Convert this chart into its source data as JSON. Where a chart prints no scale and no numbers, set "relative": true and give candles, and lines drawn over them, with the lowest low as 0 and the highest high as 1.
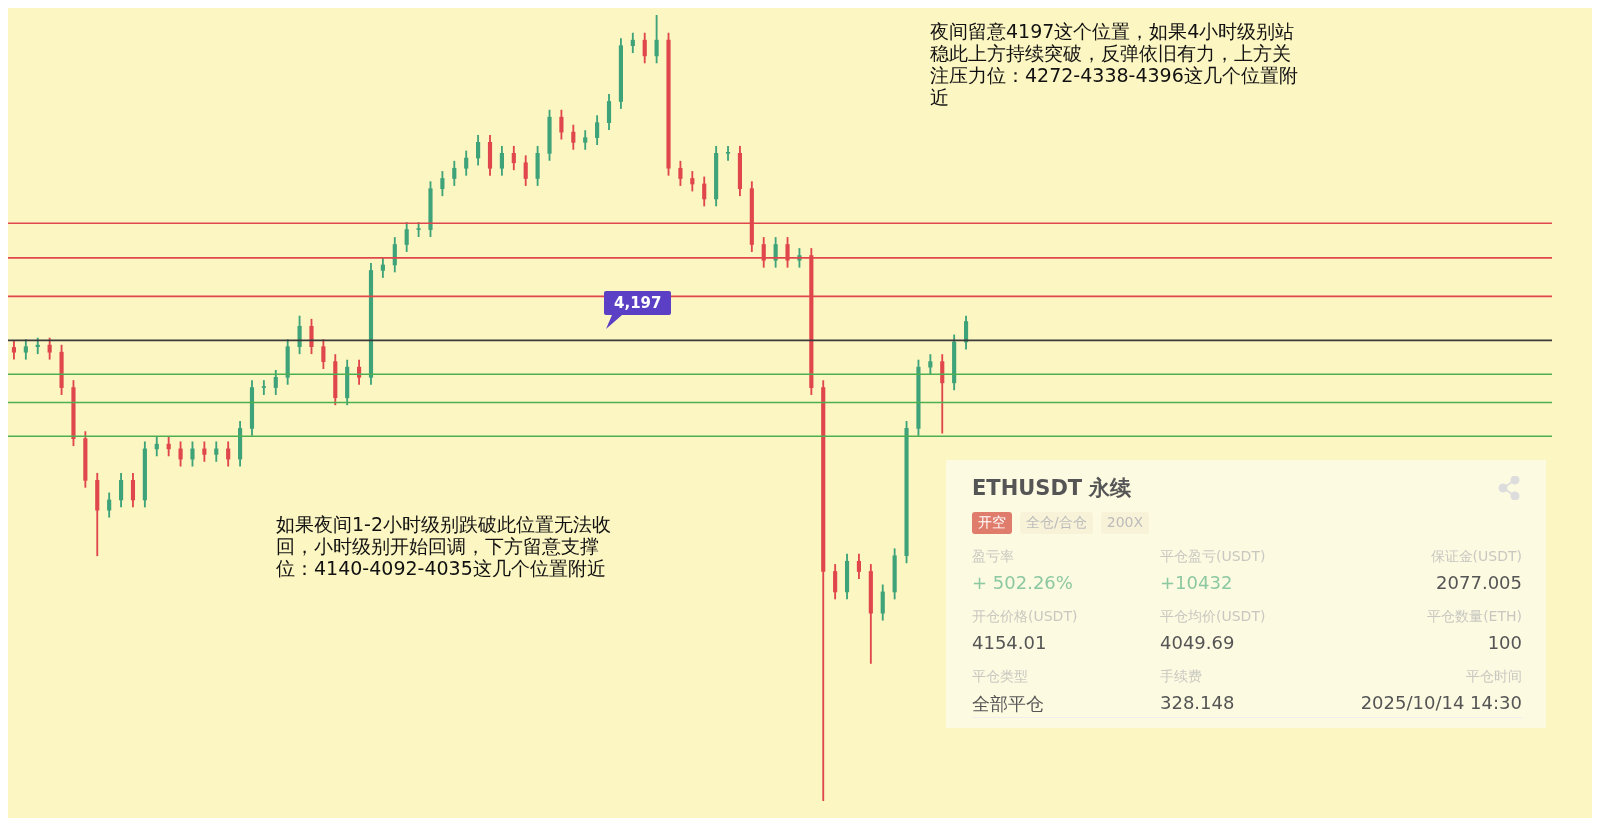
{
  "chart_data": [
    {
      "type": "candlestick",
      "relative": true,
      "categories": [
        null,
        null,
        null,
        null,
        null,
        null,
        null,
        null,
        null,
        null,
        null,
        null,
        null,
        null,
        null,
        null,
        null,
        null,
        null,
        null,
        null,
        null,
        null,
        null,
        null,
        null,
        null,
        null,
        null,
        null,
        null,
        null,
        null,
        null,
        null,
        null,
        null,
        null,
        null,
        null,
        null,
        null,
        null,
        null,
        null,
        null,
        null,
        null,
        null,
        null,
        null,
        null,
        null,
        null,
        null,
        null,
        null,
        null,
        null,
        null,
        null,
        null,
        null,
        null,
        null,
        null,
        null,
        null,
        null,
        null,
        null,
        null,
        null,
        null,
        null,
        null,
        null,
        null,
        null,
        null,
        null
      ],
      "ohlc": [
        [
          0.577,
          0.586,
          0.562,
          0.571
        ],
        [
          0.571,
          0.587,
          0.562,
          0.578
        ],
        [
          0.578,
          0.589,
          0.569,
          0.58
        ],
        [
          0.58,
          0.589,
          0.562,
          0.571
        ],
        [
          0.571,
          0.58,
          0.517,
          0.526
        ],
        [
          0.526,
          0.535,
          0.452,
          0.461
        ],
        [
          0.461,
          0.47,
          0.399,
          0.408
        ],
        [
          0.408,
          0.417,
          0.312,
          0.37
        ],
        [
          0.37,
          0.392,
          0.361,
          0.383
        ],
        [
          0.383,
          0.417,
          0.374,
          0.408
        ],
        [
          0.408,
          0.417,
          0.374,
          0.383
        ],
        [
          0.383,
          0.457,
          0.374,
          0.448
        ],
        [
          0.448,
          0.463,
          0.439,
          0.454
        ],
        [
          0.454,
          0.463,
          0.439,
          0.448
        ],
        [
          0.448,
          0.457,
          0.426,
          0.435
        ],
        [
          0.435,
          0.457,
          0.426,
          0.448
        ],
        [
          0.448,
          0.457,
          0.432,
          0.441
        ],
        [
          0.441,
          0.457,
          0.432,
          0.448
        ],
        [
          0.448,
          0.457,
          0.426,
          0.435
        ],
        [
          0.435,
          0.483,
          0.426,
          0.474
        ],
        [
          0.474,
          0.535,
          0.465,
          0.526
        ],
        [
          0.526,
          0.535,
          0.517,
          0.526
        ],
        [
          0.526,
          0.548,
          0.517,
          0.539
        ],
        [
          0.539,
          0.587,
          0.53,
          0.578
        ],
        [
          0.578,
          0.617,
          0.569,
          0.604
        ],
        [
          0.604,
          0.613,
          0.569,
          0.578
        ],
        [
          0.578,
          0.587,
          0.55,
          0.559
        ],
        [
          0.559,
          0.568,
          0.504,
          0.513
        ],
        [
          0.513,
          0.561,
          0.504,
          0.552
        ],
        [
          0.552,
          0.561,
          0.53,
          0.539
        ],
        [
          0.539,
          0.684,
          0.53,
          0.675
        ],
        [
          0.675,
          0.691,
          0.666,
          0.682
        ],
        [
          0.682,
          0.717,
          0.673,
          0.708
        ],
        [
          0.708,
          0.736,
          0.699,
          0.727
        ],
        [
          0.727,
          0.736,
          0.718,
          0.727
        ],
        [
          0.727,
          0.788,
          0.718,
          0.779
        ],
        [
          0.779,
          0.801,
          0.77,
          0.792
        ],
        [
          0.792,
          0.814,
          0.783,
          0.805
        ],
        [
          0.805,
          0.827,
          0.796,
          0.818
        ],
        [
          0.818,
          0.847,
          0.809,
          0.838
        ],
        [
          0.838,
          0.847,
          0.796,
          0.805
        ],
        [
          0.805,
          0.833,
          0.796,
          0.824
        ],
        [
          0.824,
          0.833,
          0.803,
          0.812
        ],
        [
          0.812,
          0.821,
          0.783,
          0.792
        ],
        [
          0.792,
          0.833,
          0.783,
          0.824
        ],
        [
          0.824,
          0.879,
          0.815,
          0.87
        ],
        [
          0.87,
          0.879,
          0.842,
          0.851
        ],
        [
          0.851,
          0.86,
          0.829,
          0.838
        ],
        [
          0.838,
          0.853,
          0.829,
          0.844
        ],
        [
          0.844,
          0.872,
          0.835,
          0.863
        ],
        [
          0.863,
          0.899,
          0.854,
          0.89
        ],
        [
          0.89,
          0.97,
          0.881,
          0.961
        ],
        [
          0.961,
          0.977,
          0.952,
          0.968
        ],
        [
          0.968,
          0.977,
          0.939,
          0.948
        ],
        [
          0.948,
          1,
          0.939,
          0.968
        ],
        [
          0.968,
          0.977,
          0.796,
          0.805
        ],
        [
          0.805,
          0.814,
          0.783,
          0.792
        ],
        [
          0.792,
          0.801,
          0.776,
          0.785
        ],
        [
          0.785,
          0.794,
          0.757,
          0.766
        ],
        [
          0.766,
          0.833,
          0.757,
          0.824
        ],
        [
          0.824,
          0.833,
          0.815,
          0.824
        ],
        [
          0.824,
          0.833,
          0.77,
          0.779
        ],
        [
          0.779,
          0.788,
          0.699,
          0.708
        ],
        [
          0.708,
          0.717,
          0.679,
          0.688
        ],
        [
          0.688,
          0.717,
          0.679,
          0.708
        ],
        [
          0.708,
          0.717,
          0.679,
          0.688
        ],
        [
          0.688,
          0.703,
          0.679,
          0.694
        ],
        [
          0.694,
          0.703,
          0.517,
          0.526
        ],
        [
          0.526,
          0.535,
          0,
          0.292
        ],
        [
          0.292,
          0.301,
          0.257,
          0.266
        ],
        [
          0.266,
          0.314,
          0.257,
          0.305
        ],
        [
          0.305,
          0.314,
          0.283,
          0.292
        ],
        [
          0.292,
          0.301,
          0.175,
          0.239
        ],
        [
          0.239,
          0.275,
          0.23,
          0.266
        ],
        [
          0.266,
          0.321,
          0.257,
          0.312
        ],
        [
          0.312,
          0.483,
          0.303,
          0.474
        ],
        [
          0.474,
          0.561,
          0.465,
          0.552
        ],
        [
          0.552,
          0.568,
          0.543,
          0.559
        ],
        [
          0.559,
          0.568,
          0.468,
          0.532
        ],
        [
          0.532,
          0.593,
          0.523,
          0.584
        ],
        [
          0.584,
          0.617,
          0.575,
          0.61
        ]
      ],
      "ref_lines": [
        {
          "axis": "y",
          "value": 0.735,
          "label": null,
          "color": "#e0474c"
        },
        {
          "axis": "y",
          "value": 0.691,
          "label": null,
          "color": "#e0474c"
        },
        {
          "axis": "y",
          "value": 0.642,
          "label": null,
          "color": "#e0474c"
        },
        {
          "axis": "y",
          "value": 0.586,
          "label": null,
          "color": "#3a3a3a"
        },
        {
          "axis": "y",
          "value": 0.543,
          "label": null,
          "color": "#4caf50"
        },
        {
          "axis": "y",
          "value": 0.507,
          "label": null,
          "color": "#4caf50"
        },
        {
          "axis": "y",
          "value": 0.464,
          "label": null,
          "color": "#4caf50"
        }
      ],
      "annotations": [
        "4,197",
        "夜间留意4197这个位置，如果4小时级别站稳此上方持续突破，反弹依旧有力，上方关注压力位：4272-4338-4396这几个位置附近",
        "如果夜间1-2小时级别跌破此位置无法收回，小时级别开始回调，下方留意支撑位：4140-4092-4035这几个位置附近"
      ]
    },
    {
      "type": "other",
      "title": "ETHUSDT 永续",
      "annotations": [
        "开空",
        "全仓/合仓",
        "200X",
        "盈亏率",
        "+ 502.26%",
        "平仓盈亏(USDT)",
        "+10432",
        "保证金(USDT)",
        "2077.005",
        "开仓价格(USDT)",
        "4154.01",
        "平仓均价(USDT)",
        "4049.69",
        "平仓数量(ETH)",
        "100",
        "平仓类型",
        "全部平仓",
        "手续费",
        "328.148",
        "平仓时间",
        "2025/10/14 14:30"
      ]
    }
  ]
}
